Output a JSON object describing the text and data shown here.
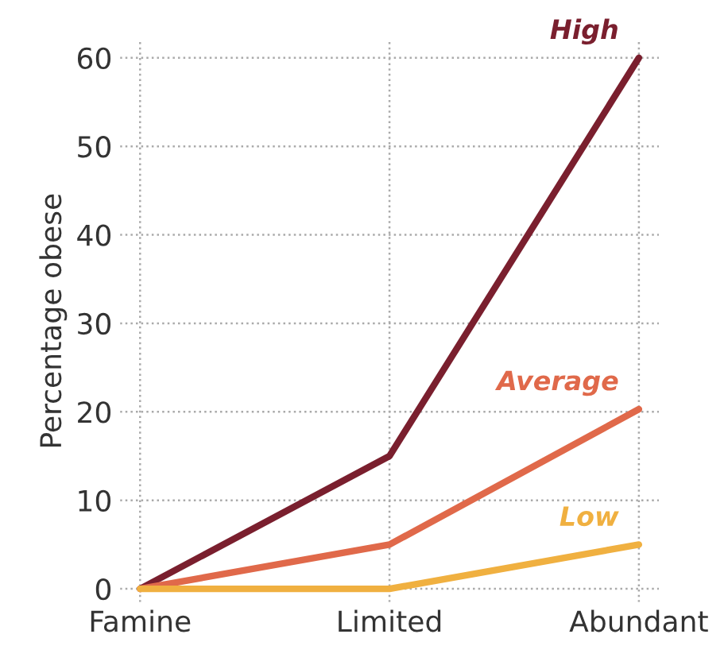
{
  "chart_data": {
    "type": "line",
    "ylabel": "Percentage obese",
    "categories": [
      "Famine",
      "Limited",
      "Abundant"
    ],
    "series": [
      {
        "name": "High",
        "color": "#7a1f2e",
        "values": [
          0,
          15,
          60
        ]
      },
      {
        "name": "Average",
        "color": "#e0694a",
        "values": [
          0,
          5,
          20.3
        ]
      },
      {
        "name": "Low",
        "color": "#f0b040",
        "values": [
          0,
          0,
          5
        ]
      }
    ],
    "ylim": [
      -1.5,
      62
    ],
    "yticks": [
      0,
      10,
      20,
      30,
      40,
      50,
      60
    ],
    "grid": true,
    "line_style": "solid",
    "marker": "none"
  }
}
